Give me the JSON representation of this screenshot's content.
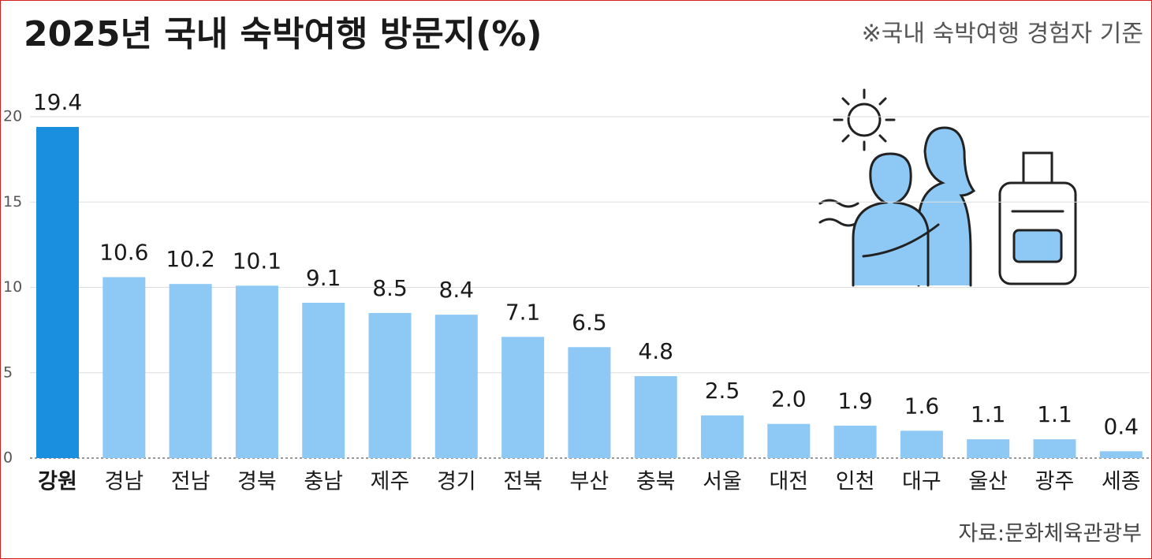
{
  "chart_data": {
    "type": "bar",
    "title": "2025년 국내 숙박여행 방문지(%)",
    "subtitle": "※국내 숙박여행 경험자 기준",
    "source": "자료:문화체육관광부",
    "categories": [
      "강원",
      "경남",
      "전남",
      "경북",
      "충남",
      "제주",
      "경기",
      "전북",
      "부산",
      "충북",
      "서울",
      "대전",
      "인천",
      "대구",
      "울산",
      "광주",
      "세종"
    ],
    "values": [
      19.4,
      10.6,
      10.2,
      10.1,
      9.1,
      8.5,
      8.4,
      7.1,
      6.5,
      4.8,
      2.5,
      2.0,
      1.9,
      1.6,
      1.1,
      1.1,
      0.4
    ],
    "value_labels": [
      "19.4",
      "10.6",
      "10.2",
      "10.1",
      "9.1",
      "8.5",
      "8.4",
      "7.1",
      "6.5",
      "4.8",
      "2.5",
      "2.0",
      "1.9",
      "1.6",
      "1.1",
      "1.1",
      "0.4"
    ],
    "color": "#8ec9f5",
    "colors": [
      "#1a8fe0",
      "#8ec9f5",
      "#8ec9f5",
      "#8ec9f5",
      "#8ec9f5",
      "#8ec9f5",
      "#8ec9f5",
      "#8ec9f5",
      "#8ec9f5",
      "#8ec9f5",
      "#8ec9f5",
      "#8ec9f5",
      "#8ec9f5",
      "#8ec9f5",
      "#8ec9f5",
      "#8ec9f5",
      "#8ec9f5"
    ],
    "ylim": [
      0,
      20
    ],
    "yticks": [
      0,
      5,
      10,
      15,
      20
    ],
    "grid": true
  }
}
